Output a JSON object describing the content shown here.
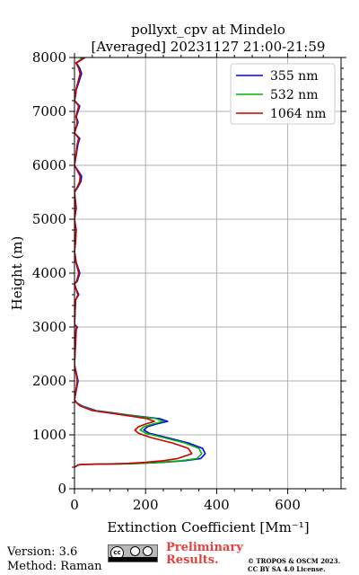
{
  "chart_data": {
    "type": "line",
    "title": "pollyxt_cpv at Mindelo",
    "subtitle": "[Averaged] 20231127 21:00-21:59",
    "xlabel": "Extinction Coefficient [Mm⁻¹]",
    "ylabel": "Height (m)",
    "xlim": [
      0,
      750
    ],
    "ylim": [
      0,
      8000
    ],
    "xticks": [
      0,
      200,
      400,
      600
    ],
    "xtick_labels": [
      "0",
      "200",
      "400",
      "600"
    ],
    "yticks": [
      0,
      1000,
      2000,
      3000,
      4000,
      5000,
      6000,
      7000,
      8000
    ],
    "ytick_labels": [
      "0",
      "1000",
      "2000",
      "3000",
      "4000",
      "5000",
      "6000",
      "7000",
      "8000"
    ],
    "grid": true,
    "legend_position": "top-right",
    "series": [
      {
        "name": "355 nm",
        "color": "#0000ff",
        "x": [
          0,
          5,
          10,
          20,
          60,
          120,
          180,
          250,
          310,
          355,
          368,
          360,
          320,
          260,
          210,
          195,
          205,
          230,
          262,
          240,
          150,
          60,
          20,
          5,
          0,
          10,
          0,
          5,
          8,
          0,
          3,
          12,
          5,
          0,
          8,
          10,
          15,
          5,
          0,
          3,
          5,
          0,
          5,
          0,
          10,
          18,
          20,
          10,
          0,
          5,
          10,
          15,
          0,
          5,
          10,
          5,
          10,
          15,
          0,
          3,
          5,
          10,
          15,
          20,
          15,
          10,
          5,
          18,
          25,
          10,
          15
        ],
        "y": [
          400,
          420,
          440,
          450,
          455,
          460,
          470,
          490,
          520,
          560,
          650,
          750,
          850,
          950,
          1030,
          1090,
          1150,
          1200,
          1250,
          1300,
          1370,
          1450,
          1540,
          1600,
          1650,
          2000,
          2300,
          2950,
          3000,
          3050,
          3500,
          3600,
          3700,
          3800,
          3850,
          3900,
          4000,
          4200,
          4400,
          4600,
          4800,
          5000,
          5200,
          5500,
          5600,
          5700,
          5800,
          5900,
          6000,
          6200,
          6400,
          6500,
          6600,
          6700,
          6800,
          6900,
          7000,
          7100,
          7200,
          7300,
          7400,
          7500,
          7600,
          7700,
          7800,
          7850,
          7900,
          7950,
          8000,
          8050,
          8100
        ]
      },
      {
        "name": "532 nm",
        "color": "#00b400",
        "x": [
          0,
          5,
          10,
          20,
          60,
          120,
          180,
          240,
          300,
          345,
          358,
          350,
          310,
          250,
          200,
          185,
          195,
          220,
          250,
          230,
          145,
          55,
          18,
          5,
          0,
          8,
          0,
          4,
          6,
          0,
          3,
          10,
          4,
          0,
          6,
          8,
          12,
          4,
          0,
          3,
          4,
          0,
          4,
          0,
          8,
          15,
          16,
          8,
          0,
          4,
          8,
          12,
          0,
          4,
          8,
          4,
          8,
          12,
          0,
          3,
          4,
          8,
          12,
          16,
          12,
          8,
          4,
          15,
          20,
          8,
          12
        ],
        "y": [
          400,
          420,
          440,
          450,
          455,
          460,
          470,
          490,
          520,
          560,
          650,
          750,
          850,
          950,
          1030,
          1090,
          1150,
          1200,
          1250,
          1300,
          1370,
          1450,
          1540,
          1600,
          1650,
          2000,
          2300,
          2950,
          3000,
          3050,
          3500,
          3600,
          3700,
          3800,
          3850,
          3900,
          4000,
          4200,
          4400,
          4600,
          4800,
          5000,
          5200,
          5500,
          5600,
          5700,
          5800,
          5900,
          6000,
          6200,
          6400,
          6500,
          6600,
          6700,
          6800,
          6900,
          7000,
          7100,
          7200,
          7300,
          7400,
          7500,
          7600,
          7700,
          7800,
          7850,
          7900,
          7950,
          8000,
          8050,
          8100
        ]
      },
      {
        "name": "1064 nm",
        "color": "#cc0000",
        "x": [
          0,
          5,
          10,
          15,
          40,
          90,
          150,
          200,
          250,
          290,
          330,
          320,
          275,
          215,
          180,
          170,
          180,
          200,
          225,
          205,
          135,
          50,
          15,
          5,
          0,
          8,
          0,
          4,
          6,
          0,
          3,
          10,
          4,
          0,
          6,
          8,
          12,
          4,
          0,
          3,
          4,
          0,
          4,
          0,
          8,
          15,
          16,
          8,
          0,
          4,
          8,
          12,
          0,
          4,
          8,
          4,
          8,
          12,
          0,
          3,
          4,
          8,
          12,
          16,
          12,
          8,
          4,
          18,
          30,
          8,
          12
        ],
        "y": [
          400,
          420,
          440,
          450,
          455,
          460,
          470,
          490,
          520,
          560,
          650,
          750,
          850,
          950,
          1030,
          1090,
          1150,
          1200,
          1250,
          1300,
          1370,
          1450,
          1540,
          1600,
          1650,
          2000,
          2300,
          2950,
          3000,
          3050,
          3500,
          3600,
          3700,
          3800,
          3850,
          3900,
          4000,
          4200,
          4400,
          4600,
          4800,
          5000,
          5200,
          5500,
          5600,
          5700,
          5800,
          5900,
          6000,
          6200,
          6400,
          6500,
          6600,
          6700,
          6800,
          6900,
          7000,
          7100,
          7200,
          7300,
          7400,
          7500,
          7600,
          7700,
          7800,
          7850,
          7900,
          7950,
          8000,
          8050,
          8100
        ]
      }
    ]
  },
  "footer": {
    "version": "Version: 3.6",
    "method": "Method: Raman",
    "preliminary_line1": "Preliminary",
    "preliminary_line2": "Results.",
    "copyright_line1": "© TROPOS & OSCM 2023.",
    "copyright_line2": "CC BY SA 4.0 License.",
    "license_badge": "cc",
    "license_icon": "creative-commons-by-sa-icon"
  }
}
